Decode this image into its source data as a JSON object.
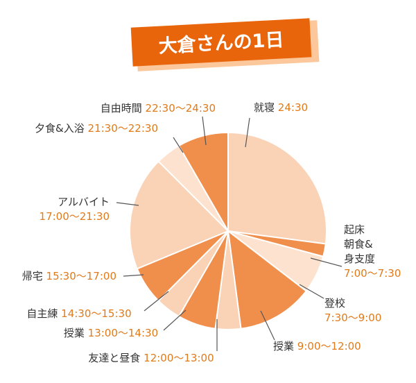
{
  "colors": {
    "dark": "#f08e4b",
    "light": "#fad2b6",
    "lighter": "#fde3cf",
    "title_bg": "#e8650c",
    "title_shadow": "#fbc79b",
    "name_text": "#333333",
    "time_text": "#e07a1a"
  },
  "chart_data": {
    "type": "pie",
    "title": "大倉さんの1日",
    "start_hour": 24.5,
    "total_hours": 24,
    "slices": [
      {
        "id": "sleep",
        "lines": [
          {
            "name": "就寝",
            "time": "24:30"
          }
        ],
        "start": 24.5,
        "end": 31.0,
        "shade": "light"
      },
      {
        "id": "morning",
        "lines": [
          {
            "name": "起床"
          },
          {
            "name": "朝食&"
          },
          {
            "name": "身支度"
          },
          {
            "time": "7:00～7:30"
          }
        ],
        "start": 31.0,
        "end": 31.5,
        "shade": "dark"
      },
      {
        "id": "commute",
        "lines": [
          {
            "name": "登校"
          },
          {
            "time": "7:30～9:00"
          }
        ],
        "start": 31.5,
        "end": 33.0,
        "shade": "lighter"
      },
      {
        "id": "class1",
        "lines": [
          {
            "name": "授業",
            "time": "9:00～12:00"
          }
        ],
        "start": 33.0,
        "end": 36.0,
        "shade": "dark"
      },
      {
        "id": "lunch",
        "lines": [
          {
            "name": "友達と昼食",
            "time": "12:00～13:00"
          }
        ],
        "start": 36.0,
        "end": 37.0,
        "shade": "light"
      },
      {
        "id": "class2",
        "lines": [
          {
            "name": "授業",
            "time": "13:00～14:30"
          }
        ],
        "start": 37.0,
        "end": 38.5,
        "shade": "dark"
      },
      {
        "id": "practice",
        "lines": [
          {
            "name": "自主練",
            "time": "14:30～15:30"
          }
        ],
        "start": 38.5,
        "end": 39.5,
        "shade": "light"
      },
      {
        "id": "home",
        "lines": [
          {
            "name": "帰宅",
            "time": "15:30～17:00"
          }
        ],
        "start": 39.5,
        "end": 41.0,
        "shade": "dark"
      },
      {
        "id": "parttime",
        "lines": [
          {
            "name": "アルバイト"
          },
          {
            "time": "17:00～21:30"
          }
        ],
        "start": 41.0,
        "end": 45.5,
        "shade": "light"
      },
      {
        "id": "dinner",
        "lines": [
          {
            "name": "夕食&入浴",
            "time": "21:30～22:30"
          }
        ],
        "start": 45.5,
        "end": 46.5,
        "shade": "lighter"
      },
      {
        "id": "free",
        "lines": [
          {
            "name": "自由時間",
            "time": "22:30～24:30"
          }
        ],
        "start": 46.5,
        "end": 48.5,
        "shade": "dark"
      }
    ]
  }
}
